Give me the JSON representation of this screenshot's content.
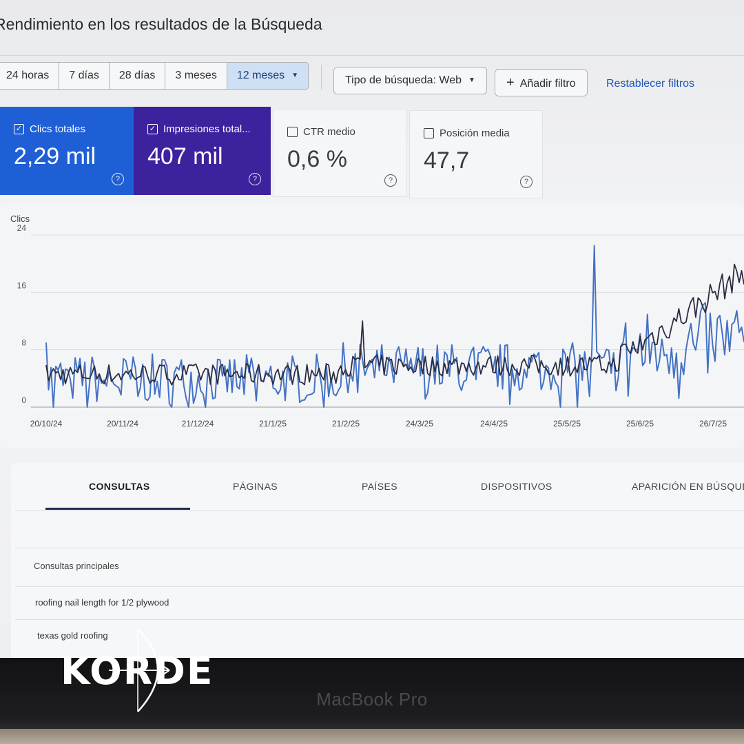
{
  "header": {
    "title": "Rendimiento en los resultados de la Búsqueda"
  },
  "toolbar": {
    "ranges": [
      "24 horas",
      "7 días",
      "28 días",
      "3 meses",
      "12 meses"
    ],
    "active_range_index": 4,
    "search_type": "Tipo de búsqueda: Web",
    "add_filter": "Añadir filtro",
    "reset_filters": "Restablecer filtros"
  },
  "metrics": [
    {
      "label": "Clics totales",
      "value": "2,29 mil",
      "checked": true
    },
    {
      "label": "Impresiones total...",
      "value": "407 mil",
      "checked": true
    },
    {
      "label": "CTR medio",
      "value": "0,6 %",
      "checked": false
    },
    {
      "label": "Posición media",
      "value": "47,7",
      "checked": false
    }
  ],
  "chart_data": {
    "type": "line",
    "ylabel": "Clics",
    "yticks": [
      0,
      8,
      16,
      24
    ],
    "ylim": [
      0,
      24
    ],
    "xticks": [
      "20/10/24",
      "20/11/24",
      "21/12/24",
      "21/1/25",
      "21/2/25",
      "24/3/25",
      "24/4/25",
      "25/5/25",
      "25/6/25",
      "26/7/25"
    ],
    "series": [
      {
        "key": "clicks",
        "color": "#4472c4"
      },
      {
        "key": "impressions",
        "color": "#2b2d42"
      }
    ]
  },
  "tabs": [
    "CONSULTAS",
    "PÁGINAS",
    "PAÍSES",
    "DISPOSITIVOS",
    "APARICIÓN EN BÚSQUEDA"
  ],
  "table": {
    "header": "Consultas principales",
    "rows": [
      "roofing nail length for 1/2 plywood",
      "texas gold roofing"
    ]
  },
  "watermark": {
    "text": "KORDE"
  },
  "device": {
    "label": "MacBook Pro"
  },
  "colors": {
    "clicks_blue": "#1f5fd6",
    "impressions_purple": "#3d229e",
    "link": "#1f56b8"
  }
}
